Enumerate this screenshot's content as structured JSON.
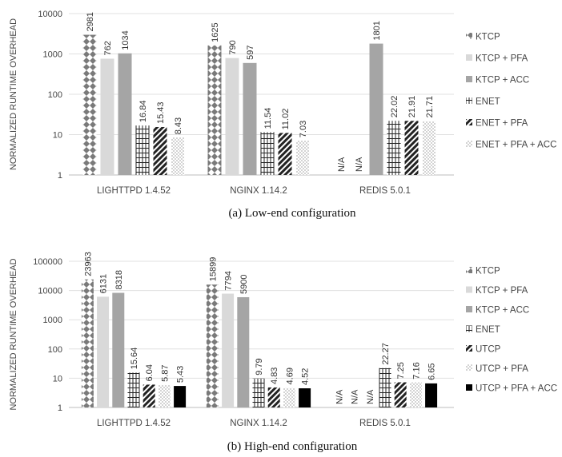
{
  "chart_data": [
    {
      "type": "bar",
      "caption": "(a) Low-end configuration",
      "ylabel": "NORMALIZED RUNTIME OVERHEAD",
      "yscale": "log",
      "ylim": [
        1,
        10000
      ],
      "yticks": [
        "1",
        "10",
        "100",
        "1000",
        "10000"
      ],
      "categories": [
        "LIGHTTPD 1.4.52",
        "NGINX 1.14.2",
        "REDIS 5.0.1"
      ],
      "legend_position": "right",
      "series": [
        {
          "name": "KTCP",
          "pattern": "diamond",
          "values": [
            2981,
            1625,
            null
          ],
          "labels": [
            "2981",
            "1625",
            "N/A"
          ]
        },
        {
          "name": "KTCP + PFA",
          "pattern": "light",
          "values": [
            762,
            790,
            null
          ],
          "labels": [
            "762",
            "790",
            "N/A"
          ]
        },
        {
          "name": "KTCP + ACC",
          "pattern": "gray",
          "values": [
            1034,
            597,
            1801
          ],
          "labels": [
            "1034",
            "597",
            "1801"
          ]
        },
        {
          "name": "ENET",
          "pattern": "brick",
          "values": [
            16.84,
            11.54,
            22.02
          ],
          "labels": [
            "16.84",
            "11.54",
            "22.02"
          ]
        },
        {
          "name": "ENET + PFA",
          "pattern": "diagonal",
          "values": [
            15.43,
            11.02,
            21.91
          ],
          "labels": [
            "15.43",
            "11.02",
            "21.91"
          ]
        },
        {
          "name": "ENET + PFA + ACC",
          "pattern": "dots",
          "values": [
            8.43,
            7.03,
            21.71
          ],
          "labels": [
            "8.43",
            "7.03",
            "21.71"
          ]
        }
      ]
    },
    {
      "type": "bar",
      "caption": "(b) High-end configuration",
      "ylabel": "NORMALIZED RUNTIME OVERHEAD",
      "yscale": "log",
      "ylim": [
        1,
        100000
      ],
      "yticks": [
        "1",
        "10",
        "100",
        "1000",
        "10000",
        "100000"
      ],
      "categories": [
        "LIGHTTPD 1.4.52",
        "NGINX 1.14.2",
        "REDIS 5.0.1"
      ],
      "legend_position": "right",
      "series": [
        {
          "name": "KTCP",
          "pattern": "diamond",
          "values": [
            23963,
            15899,
            null
          ],
          "labels": [
            "23963",
            "15899",
            "N/A"
          ]
        },
        {
          "name": "KTCP + PFA",
          "pattern": "light",
          "values": [
            6131,
            7794,
            null
          ],
          "labels": [
            "6131",
            "7794",
            "N/A"
          ]
        },
        {
          "name": "KTCP + ACC",
          "pattern": "gray",
          "values": [
            8318,
            5900,
            null
          ],
          "labels": [
            "8318",
            "5900",
            "N/A"
          ]
        },
        {
          "name": "ENET",
          "pattern": "brick",
          "values": [
            15.64,
            9.79,
            22.27
          ],
          "labels": [
            "15.64",
            "9.79",
            "22.27"
          ]
        },
        {
          "name": "UTCP",
          "pattern": "diagonal",
          "values": [
            6.04,
            4.83,
            7.25
          ],
          "labels": [
            "6.04",
            "4.83",
            "7.25"
          ]
        },
        {
          "name": "UTCP + PFA",
          "pattern": "dots",
          "values": [
            5.87,
            4.69,
            7.16
          ],
          "labels": [
            "5.87",
            "4.69",
            "7.16"
          ]
        },
        {
          "name": "UTCP + PFA + ACC",
          "pattern": "black",
          "values": [
            5.43,
            4.52,
            6.65
          ],
          "labels": [
            "5.43",
            "4.52",
            "6.65"
          ]
        }
      ]
    }
  ]
}
